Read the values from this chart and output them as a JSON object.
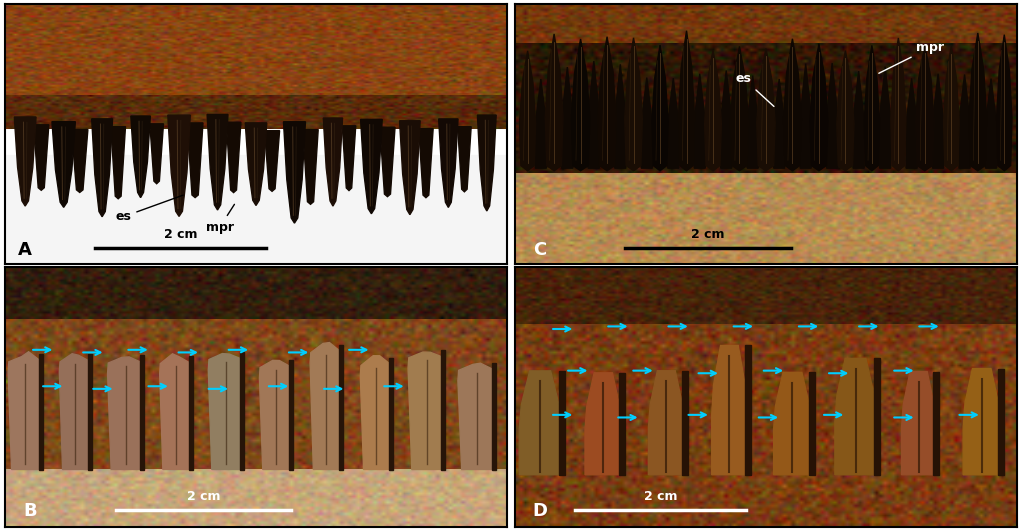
{
  "figure_width": 10.24,
  "figure_height": 5.31,
  "dpi": 100,
  "bg_color": "#ffffff",
  "border_color": "#000000",
  "border_lw": 1.5,
  "layout": {
    "A": [
      0.005,
      0.502,
      0.49,
      0.49
    ],
    "B": [
      0.005,
      0.008,
      0.49,
      0.49
    ],
    "C": [
      0.503,
      0.502,
      0.49,
      0.49
    ],
    "D": [
      0.503,
      0.008,
      0.49,
      0.49
    ]
  },
  "arrow_color": "#00cfff",
  "label_fontsize": 13,
  "scalebar_fontsize": 9,
  "annot_fontsize": 9
}
